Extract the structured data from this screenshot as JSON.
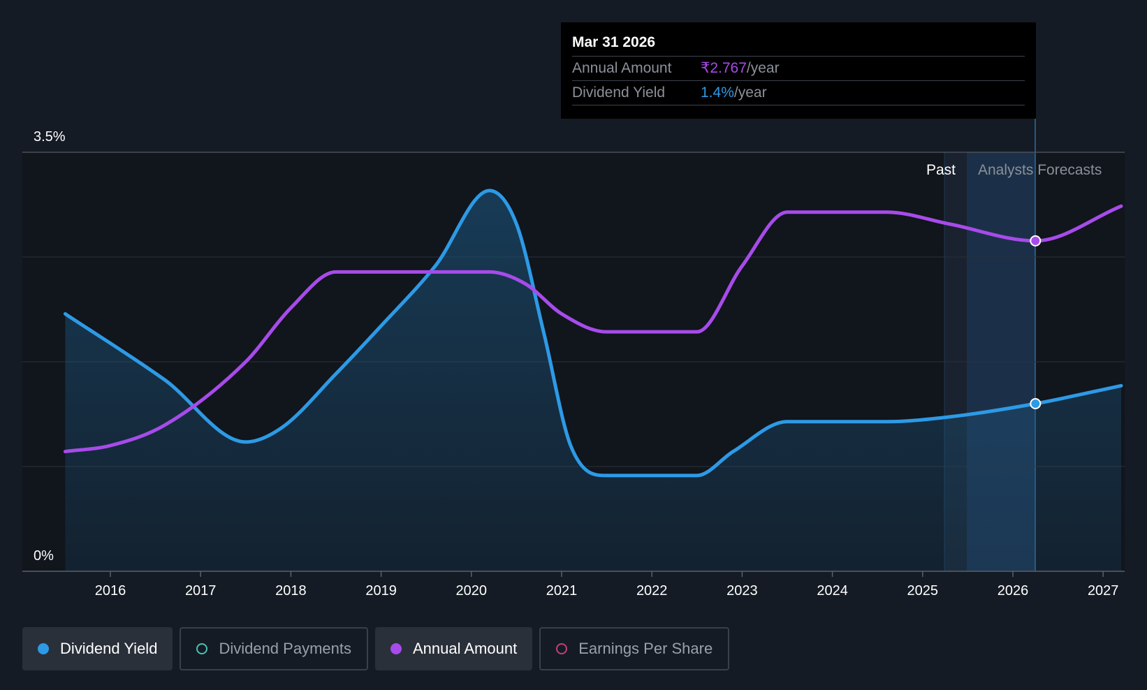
{
  "chart_data": {
    "type": "line",
    "x_ticks": [
      "2016",
      "2017",
      "2018",
      "2019",
      "2020",
      "2021",
      "2022",
      "2023",
      "2024",
      "2025",
      "2026",
      "2027"
    ],
    "y_ticks": [
      "3.5%",
      "0%"
    ],
    "ylim": [
      0,
      3.5
    ],
    "grid": true,
    "region_labels": {
      "past": "Past",
      "forecast": "Analysts Forecasts"
    },
    "series": [
      {
        "name": "Dividend Yield",
        "color": "#2d9ae6",
        "area": true,
        "points": [
          [
            2015.5,
            2.15
          ],
          [
            2016.6,
            1.6
          ],
          [
            2017.5,
            1.08
          ],
          [
            2017.9,
            1.2
          ],
          [
            2018.5,
            1.65
          ],
          [
            2019.0,
            2.05
          ],
          [
            2019.6,
            2.55
          ],
          [
            2020.2,
            3.18
          ],
          [
            2020.5,
            2.9
          ],
          [
            2020.8,
            2.0
          ],
          [
            2021.1,
            1.05
          ],
          [
            2021.5,
            0.8
          ],
          [
            2022.5,
            0.8
          ],
          [
            2022.9,
            1.0
          ],
          [
            2023.5,
            1.25
          ],
          [
            2024.6,
            1.25
          ],
          [
            2025.3,
            1.29
          ],
          [
            2026.25,
            1.4
          ],
          [
            2027.2,
            1.55
          ]
        ]
      },
      {
        "name": "Annual Amount",
        "color": "#a74bea",
        "area": false,
        "points": [
          [
            2015.5,
            1.0
          ],
          [
            2016.0,
            1.05
          ],
          [
            2016.6,
            1.22
          ],
          [
            2017.5,
            1.75
          ],
          [
            2018.0,
            2.2
          ],
          [
            2018.5,
            2.5
          ],
          [
            2020.2,
            2.5
          ],
          [
            2020.6,
            2.4
          ],
          [
            2021.0,
            2.15
          ],
          [
            2021.5,
            2.0
          ],
          [
            2022.5,
            2.0
          ],
          [
            2023.0,
            2.55
          ],
          [
            2023.5,
            3.0
          ],
          [
            2024.6,
            3.0
          ],
          [
            2025.3,
            2.9
          ],
          [
            2026.25,
            2.76
          ],
          [
            2027.2,
            3.05
          ]
        ]
      }
    ],
    "tooltip": {
      "date": "Mar 31 2026",
      "x": 2026.25,
      "rows": [
        {
          "label": "Annual Amount",
          "value": "₹2.767",
          "unit": "/year",
          "color": "#a74bea"
        },
        {
          "label": "Dividend Yield",
          "value": "1.4%",
          "unit": "/year",
          "color": "#2d9ae6"
        }
      ]
    }
  },
  "legend": [
    {
      "label": "Dividend Yield",
      "color": "#2d9ae6",
      "active": true,
      "filled": true
    },
    {
      "label": "Dividend Payments",
      "color": "#4dc0b5",
      "active": false,
      "filled": false
    },
    {
      "label": "Annual Amount",
      "color": "#a74bea",
      "active": true,
      "filled": true
    },
    {
      "label": "Earnings Per Share",
      "color": "#c2407a",
      "active": false,
      "filled": false
    }
  ]
}
